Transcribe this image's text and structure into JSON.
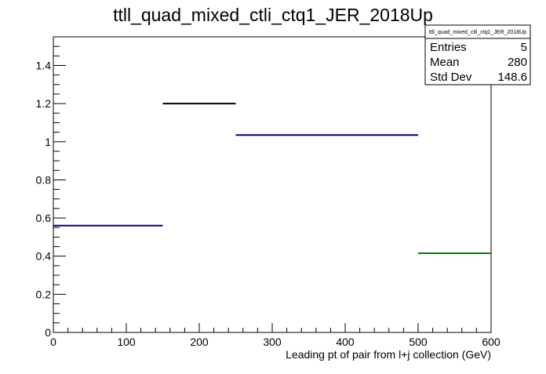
{
  "chart_data": {
    "type": "histogram",
    "title": "ttll_quad_mixed_ctli_ctq1_JER_2018Up",
    "xlabel": "Leading pt of pair from l+j collection (GeV)",
    "ylabel": "",
    "xlim": [
      0,
      600
    ],
    "ylim": [
      0,
      1.55
    ],
    "x_ticks": [
      0,
      100,
      200,
      300,
      400,
      500,
      600
    ],
    "x_tick_labels": [
      "0",
      "100",
      "200",
      "300",
      "400",
      "500",
      "600"
    ],
    "y_ticks": [
      0,
      0.2,
      0.4,
      0.6,
      0.8,
      1,
      1.2,
      1.4
    ],
    "y_tick_labels": [
      "0",
      "0.2",
      "0.4",
      "0.6",
      "0.8",
      "1",
      "1.2",
      "1.4"
    ],
    "grid": false,
    "legend_position": "top-right",
    "bins": [
      {
        "x_low": 0,
        "x_high": 150,
        "value": 0.56,
        "color": "#000080"
      },
      {
        "x_low": 150,
        "x_high": 250,
        "value": 1.2,
        "color": "#000000"
      },
      {
        "x_low": 250,
        "x_high": 500,
        "value": 1.035,
        "color": "#000080"
      },
      {
        "x_low": 500,
        "x_high": 600,
        "value": 0.415,
        "color": "#008000"
      }
    ],
    "stats_box": {
      "title": "ttll_quad_mixed_ctli_ctq1_JER_2018Up",
      "rows": [
        {
          "label": "Entries",
          "value": "5"
        },
        {
          "label": "Mean",
          "value": "280"
        },
        {
          "label": "Std Dev",
          "value": "148.6"
        }
      ]
    }
  }
}
